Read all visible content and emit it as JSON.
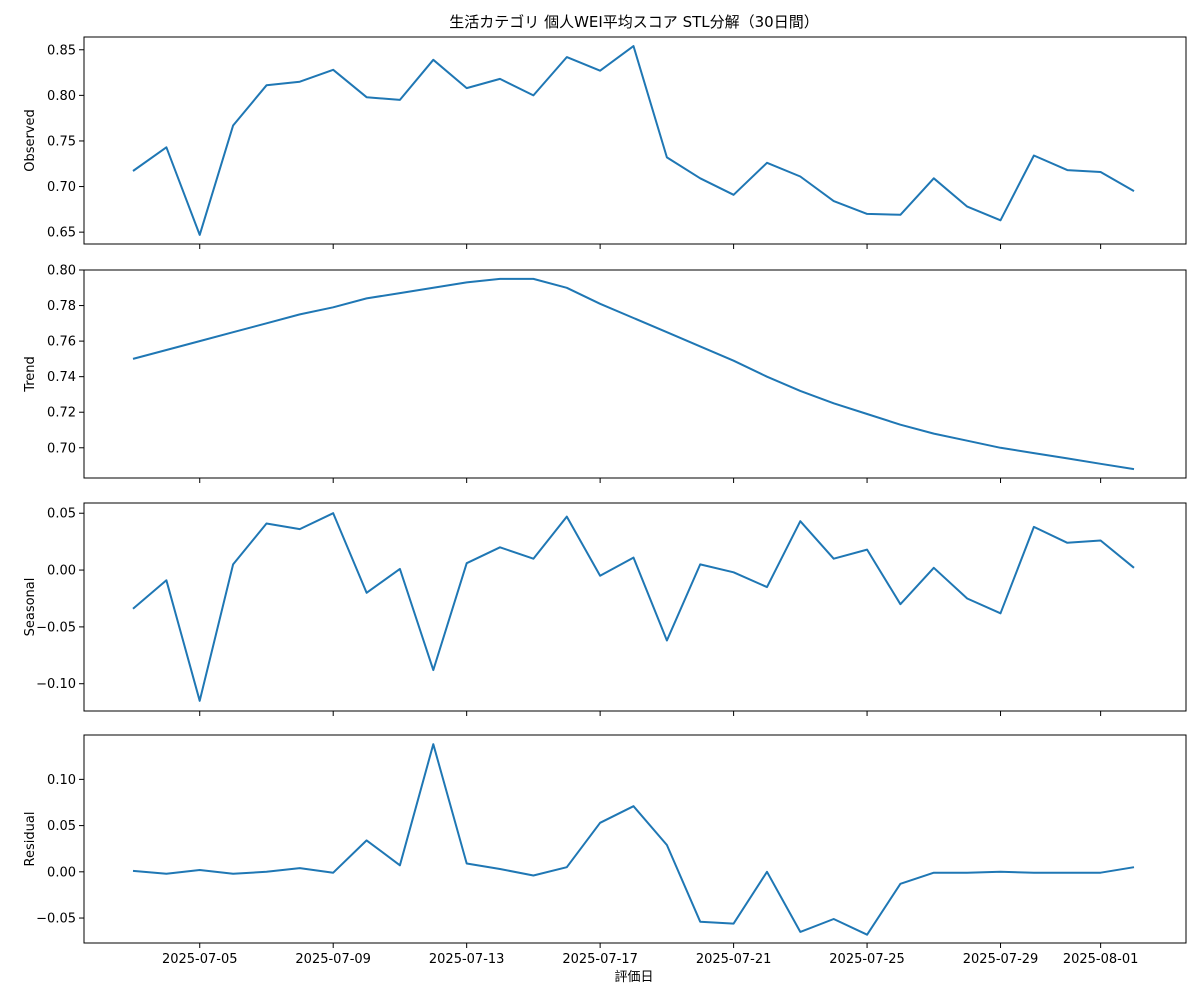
{
  "chart_data": {
    "type": "line",
    "title": "生活カテゴリ 個人WEI平均スコア STL分解（30日間）",
    "xlabel": "評価日",
    "x": [
      "2025-07-03",
      "2025-07-04",
      "2025-07-05",
      "2025-07-06",
      "2025-07-07",
      "2025-07-08",
      "2025-07-09",
      "2025-07-10",
      "2025-07-11",
      "2025-07-12",
      "2025-07-13",
      "2025-07-14",
      "2025-07-15",
      "2025-07-16",
      "2025-07-17",
      "2025-07-18",
      "2025-07-19",
      "2025-07-20",
      "2025-07-21",
      "2025-07-22",
      "2025-07-23",
      "2025-07-24",
      "2025-07-25",
      "2025-07-26",
      "2025-07-27",
      "2025-07-28",
      "2025-07-29",
      "2025-07-30",
      "2025-07-31",
      "2025-08-01",
      "2025-08-02"
    ],
    "x_ticks": [
      "2025-07-05",
      "2025-07-09",
      "2025-07-13",
      "2025-07-17",
      "2025-07-21",
      "2025-07-25",
      "2025-07-29",
      "2025-08-01"
    ],
    "panels": [
      {
        "ylabel": "Observed",
        "ylim": [
          0.637,
          0.864
        ],
        "yticks": [
          "0.65",
          "0.70",
          "0.75",
          "0.80",
          "0.85"
        ],
        "values": [
          0.717,
          0.743,
          0.647,
          0.767,
          0.811,
          0.815,
          0.828,
          0.798,
          0.795,
          0.839,
          0.808,
          0.818,
          0.8,
          0.842,
          0.827,
          0.854,
          0.732,
          0.709,
          0.691,
          0.726,
          0.711,
          0.684,
          0.67,
          0.669,
          0.709,
          0.678,
          0.663,
          0.734,
          0.718,
          0.716,
          0.695
        ]
      },
      {
        "ylabel": "Trend",
        "ylim": [
          0.683,
          0.8
        ],
        "yticks": [
          "0.70",
          "0.72",
          "0.74",
          "0.76",
          "0.78",
          "0.80"
        ],
        "values": [
          0.75,
          0.755,
          0.76,
          0.765,
          0.77,
          0.775,
          0.779,
          0.784,
          0.787,
          0.79,
          0.793,
          0.795,
          0.795,
          0.79,
          0.781,
          0.773,
          0.765,
          0.757,
          0.749,
          0.74,
          0.732,
          0.725,
          0.719,
          0.713,
          0.708,
          0.704,
          0.7,
          0.697,
          0.694,
          0.691,
          0.688
        ]
      },
      {
        "ylabel": "Seasonal",
        "ylim": [
          -0.124,
          0.059
        ],
        "yticks": [
          "−0.10",
          "−0.05",
          "0.00",
          "0.05"
        ],
        "values": [
          -0.034,
          -0.009,
          -0.115,
          0.005,
          0.041,
          0.036,
          0.05,
          -0.02,
          0.001,
          -0.088,
          0.006,
          0.02,
          0.01,
          0.047,
          -0.005,
          0.011,
          -0.062,
          0.005,
          -0.002,
          -0.015,
          0.043,
          0.01,
          0.018,
          -0.03,
          0.002,
          -0.025,
          -0.038,
          0.038,
          0.024,
          0.026,
          0.002
        ]
      },
      {
        "ylabel": "Residual",
        "ylim": [
          -0.077,
          0.148
        ],
        "yticks": [
          "−0.05",
          "0.00",
          "0.05",
          "0.10"
        ],
        "values": [
          0.001,
          -0.002,
          0.002,
          -0.002,
          0.0,
          0.004,
          -0.001,
          0.034,
          0.007,
          0.138,
          0.009,
          0.003,
          -0.004,
          0.005,
          0.053,
          0.071,
          0.029,
          -0.054,
          -0.056,
          0.0,
          -0.065,
          -0.051,
          -0.068,
          -0.013,
          -0.001,
          -0.001,
          0.0,
          -0.001,
          -0.001,
          -0.001,
          0.005
        ]
      }
    ],
    "grid": false,
    "colors": {
      "line": "#1f77b4"
    }
  }
}
